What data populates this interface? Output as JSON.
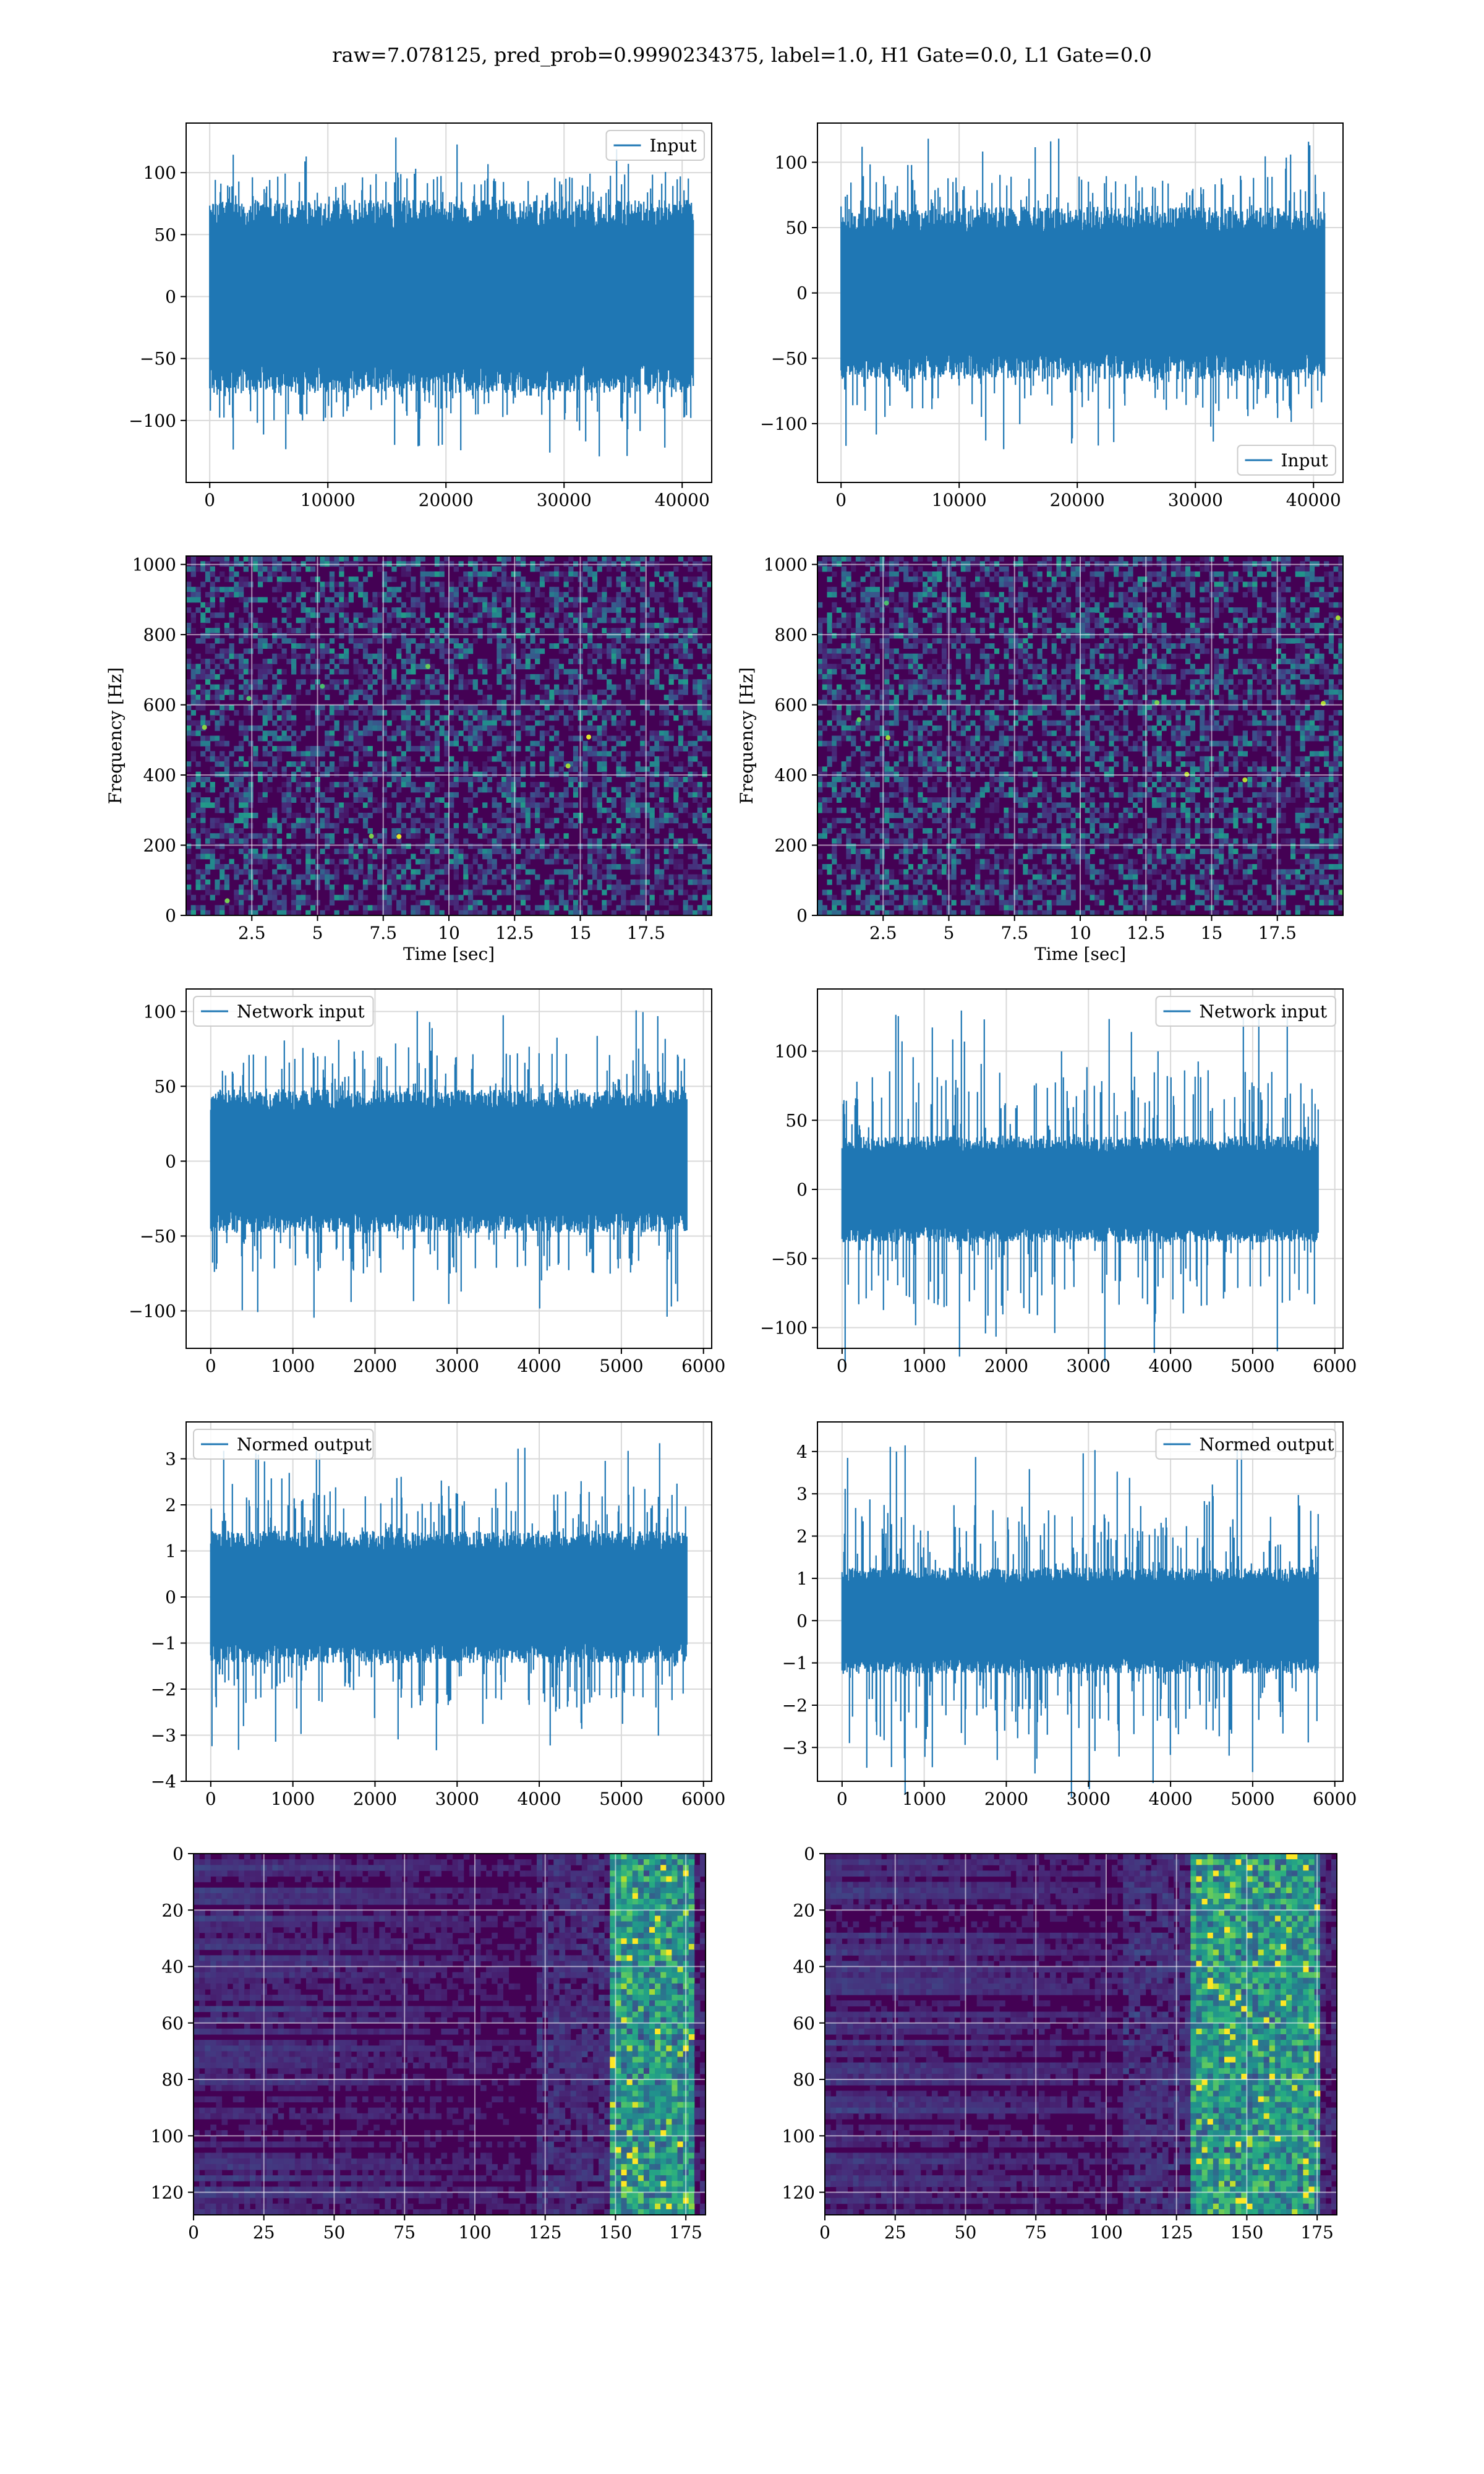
{
  "figure": {
    "suptitle": "raw=7.078125, pred_prob=0.9990234375, label=1.0, H1 Gate=0.0, L1 Gate=0.0"
  },
  "colors": {
    "series": "#1f77b4",
    "grid": "#d9d9d9",
    "frame": "#000000",
    "viridis_low": "#440154",
    "viridis_mid": "#21918c",
    "viridis_high": "#fde725"
  },
  "chart_data": [
    {
      "id": "r1c1",
      "type": "line",
      "legend": "Input",
      "legend_loc": "upper-right",
      "xlim": [
        -2000,
        42500
      ],
      "ylim": [
        -150,
        140
      ],
      "xticks": [
        0,
        10000,
        20000,
        30000,
        40000
      ],
      "yticks": [
        -100,
        -50,
        0,
        50,
        100
      ],
      "n_points": 40960,
      "core_amplitude": 65,
      "peak_amplitude": 130,
      "xlabel": "",
      "ylabel": "",
      "grid": true
    },
    {
      "id": "r1c2",
      "type": "line",
      "legend": "Input",
      "legend_loc": "lower-right",
      "xlim": [
        -2000,
        42500
      ],
      "ylim": [
        -145,
        130
      ],
      "xticks": [
        0,
        10000,
        20000,
        30000,
        40000
      ],
      "yticks": [
        -100,
        -50,
        0,
        50,
        100
      ],
      "n_points": 40960,
      "core_amplitude": 55,
      "peak_amplitude": 120,
      "xlabel": "",
      "ylabel": "",
      "grid": true
    },
    {
      "id": "r2c1",
      "type": "heatmap",
      "xlim": [
        0,
        20
      ],
      "ylim": [
        0,
        1024
      ],
      "xticks": [
        2.5,
        5.0,
        7.5,
        10.0,
        12.5,
        15.0,
        17.5
      ],
      "yticks": [
        0,
        200,
        400,
        600,
        800,
        1000
      ],
      "xlabel": "Time [sec]",
      "ylabel": "Frequency [Hz]",
      "colormap": "viridis",
      "grid": true,
      "origin": "lower"
    },
    {
      "id": "r2c2",
      "type": "heatmap",
      "xlim": [
        0,
        20
      ],
      "ylim": [
        0,
        1024
      ],
      "xticks": [
        2.5,
        5.0,
        7.5,
        10.0,
        12.5,
        15.0,
        17.5
      ],
      "yticks": [
        0,
        200,
        400,
        600,
        800,
        1000
      ],
      "xlabel": "Time [sec]",
      "ylabel": "Frequency [Hz]",
      "colormap": "viridis",
      "grid": true,
      "origin": "lower"
    },
    {
      "id": "r3c1",
      "type": "line",
      "legend": "Network input",
      "legend_loc": "upper-left",
      "xlim": [
        -300,
        6100
      ],
      "ylim": [
        -125,
        115
      ],
      "xticks": [
        0,
        1000,
        2000,
        3000,
        4000,
        5000,
        6000
      ],
      "yticks": [
        -100,
        -50,
        0,
        50,
        100
      ],
      "n_points": 5800,
      "core_amplitude": 40,
      "peak_amplitude": 105,
      "xlabel": "",
      "ylabel": "",
      "grid": true
    },
    {
      "id": "r3c2",
      "type": "line",
      "legend": "Network input",
      "legend_loc": "upper-right",
      "xlim": [
        -300,
        6100
      ],
      "ylim": [
        -115,
        145
      ],
      "xticks": [
        0,
        1000,
        2000,
        3000,
        4000,
        5000,
        6000
      ],
      "yticks": [
        -100,
        -50,
        0,
        50,
        100
      ],
      "n_points": 5800,
      "core_amplitude": 32,
      "peak_amplitude": 130,
      "xlabel": "",
      "ylabel": "",
      "grid": true
    },
    {
      "id": "r4c1",
      "type": "line",
      "legend": "Normed output",
      "legend_loc": "upper-left",
      "xlim": [
        -300,
        6100
      ],
      "ylim": [
        -4,
        3.8
      ],
      "xticks": [
        0,
        1000,
        2000,
        3000,
        4000,
        5000,
        6000
      ],
      "yticks": [
        -4,
        -3,
        -2,
        -1,
        0,
        1,
        2,
        3
      ],
      "n_points": 5800,
      "core_amplitude": 1.2,
      "peak_amplitude": 3.4,
      "xlabel": "",
      "ylabel": "",
      "grid": true
    },
    {
      "id": "r4c2",
      "type": "line",
      "legend": "Normed output",
      "legend_loc": "upper-right",
      "xlim": [
        -300,
        6100
      ],
      "ylim": [
        -3.8,
        4.7
      ],
      "xticks": [
        0,
        1000,
        2000,
        3000,
        4000,
        5000,
        6000
      ],
      "yticks": [
        -3,
        -2,
        -1,
        0,
        1,
        2,
        3,
        4
      ],
      "n_points": 5800,
      "core_amplitude": 1.05,
      "peak_amplitude": 4.3,
      "xlabel": "",
      "ylabel": "",
      "grid": true
    },
    {
      "id": "r5c1",
      "type": "heatmap",
      "xlim": [
        0,
        182
      ],
      "ylim": [
        0,
        128
      ],
      "xticks": [
        0,
        25,
        50,
        75,
        100,
        125,
        150,
        175
      ],
      "yticks": [
        0,
        20,
        40,
        60,
        80,
        100,
        120
      ],
      "xlabel": "",
      "ylabel": "",
      "colormap": "viridis",
      "grid": true,
      "origin": "upper",
      "hot_band": [
        148,
        178
      ]
    },
    {
      "id": "r5c2",
      "type": "heatmap",
      "xlim": [
        0,
        182
      ],
      "ylim": [
        0,
        128
      ],
      "xticks": [
        0,
        25,
        50,
        75,
        100,
        125,
        150,
        175
      ],
      "yticks": [
        0,
        20,
        40,
        60,
        80,
        100,
        120
      ],
      "xlabel": "",
      "ylabel": "",
      "colormap": "viridis",
      "grid": true,
      "origin": "upper",
      "hot_band": [
        130,
        175
      ]
    }
  ]
}
